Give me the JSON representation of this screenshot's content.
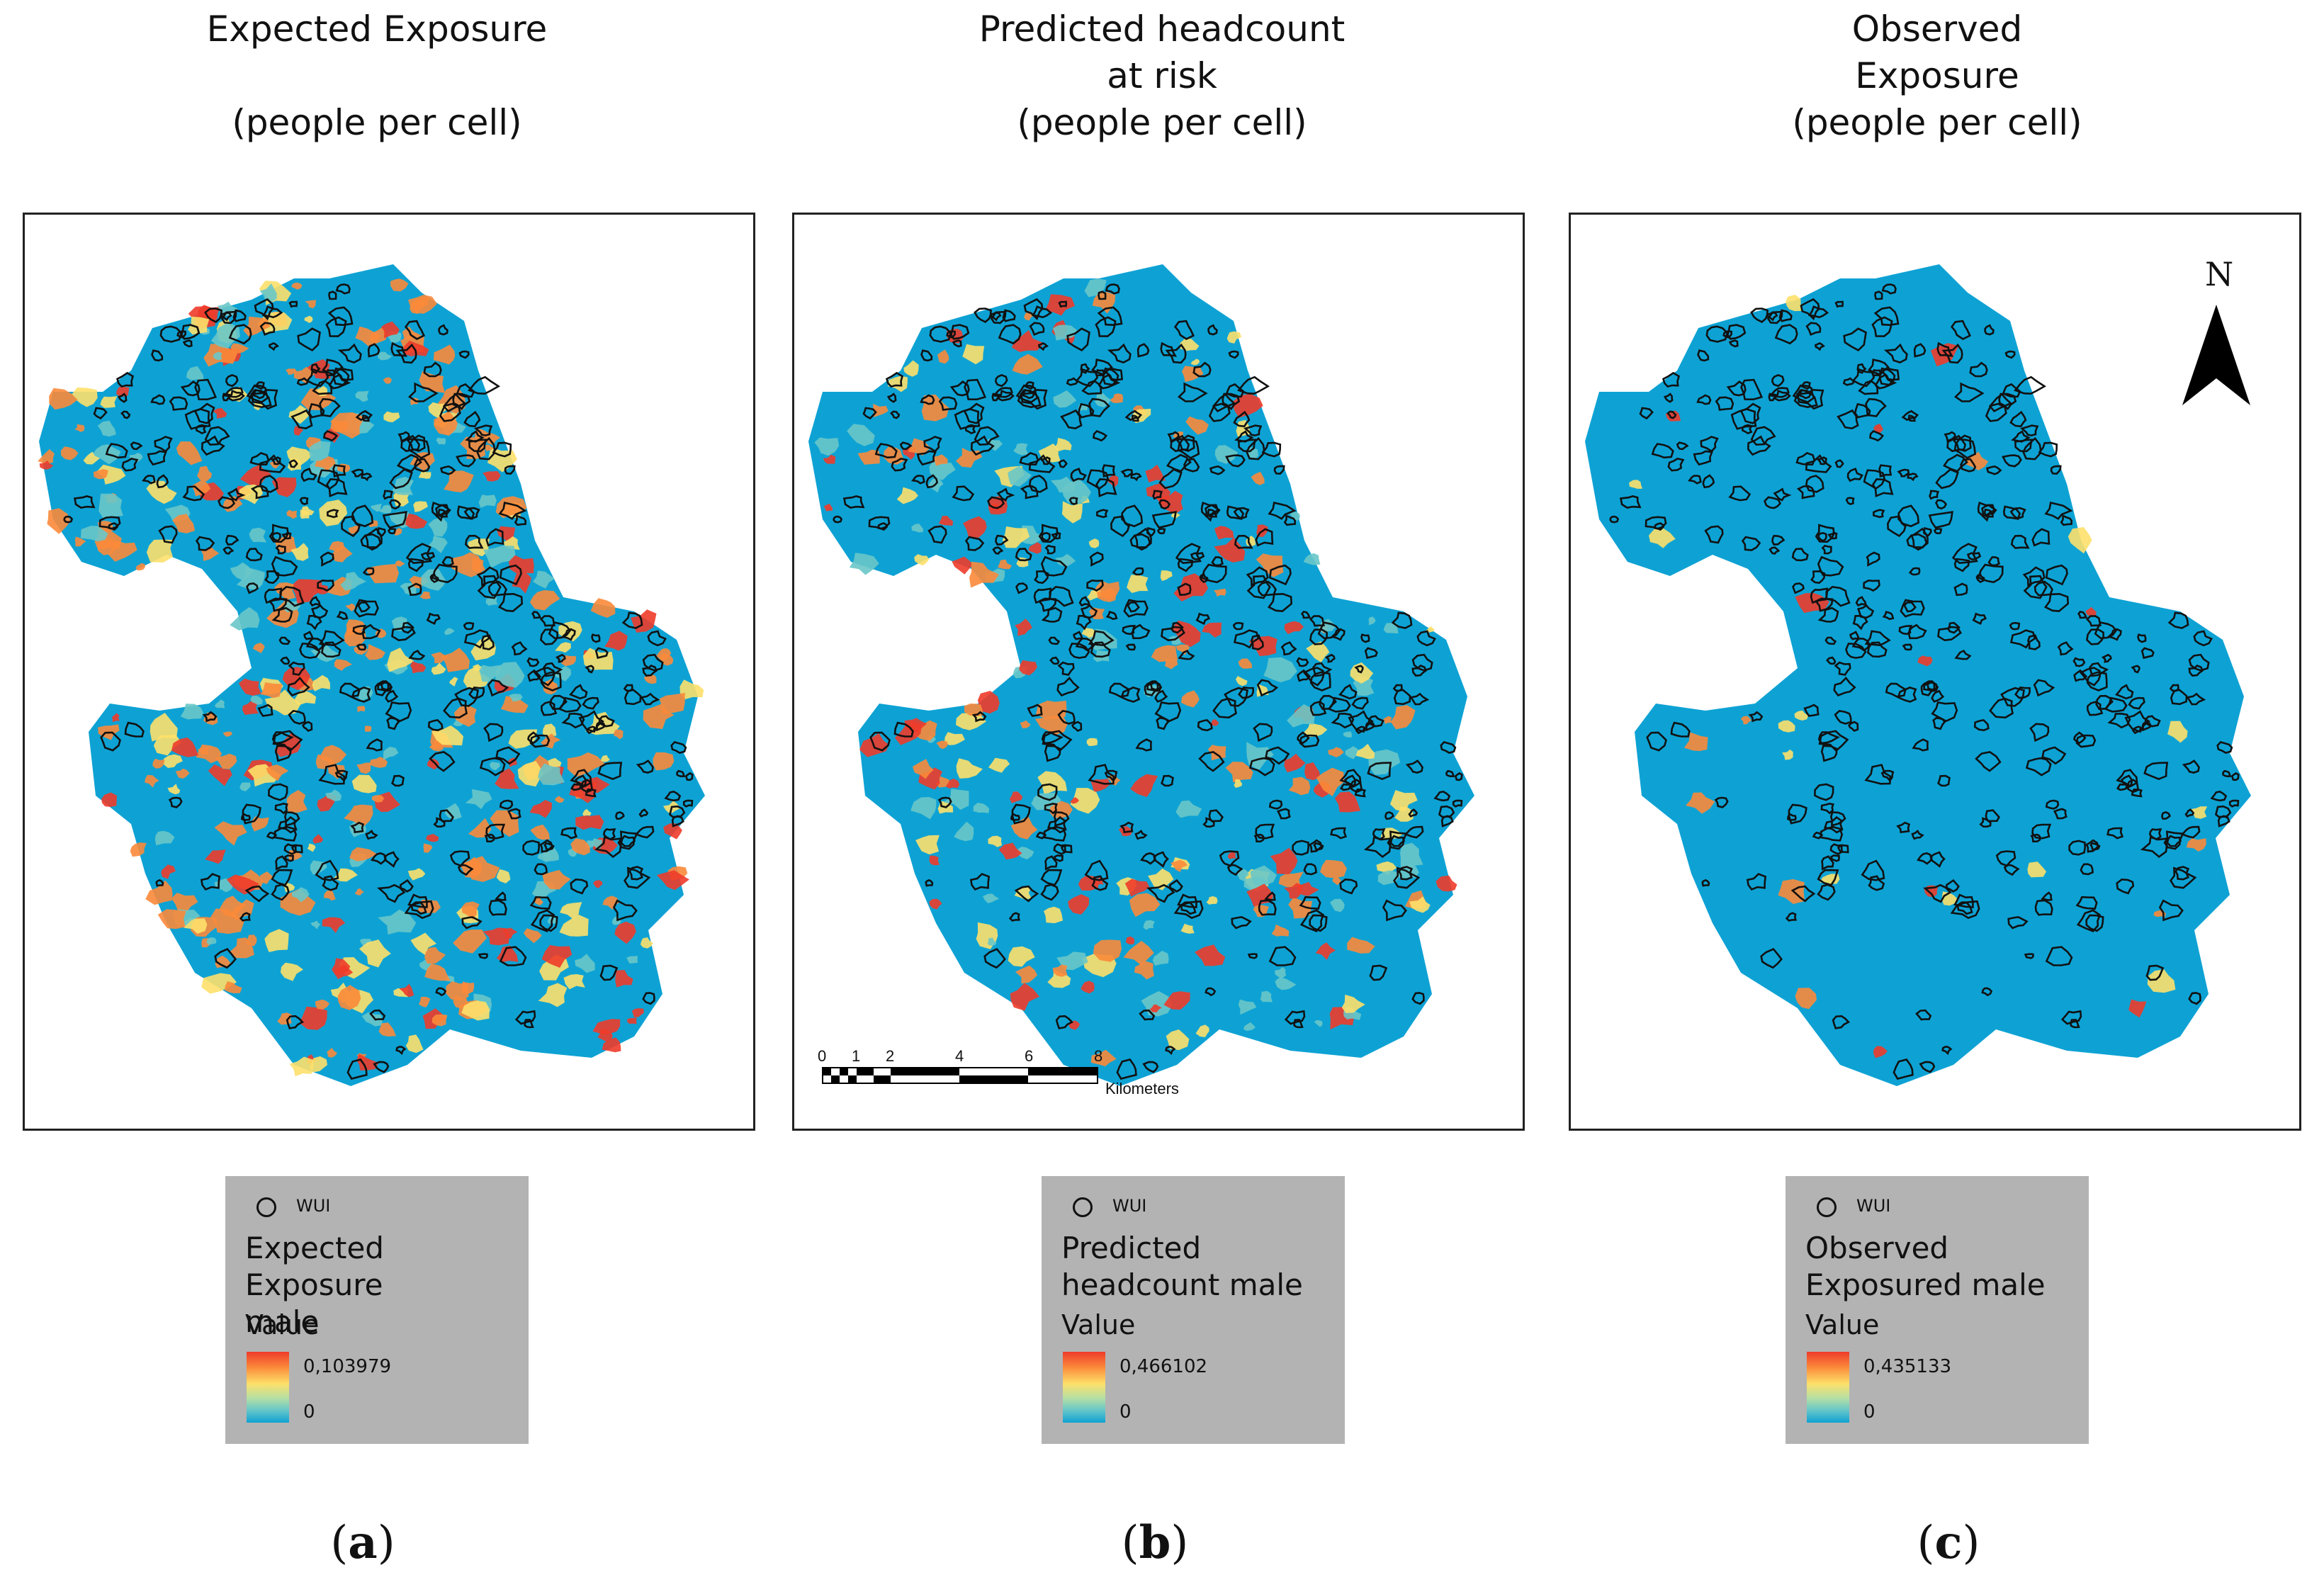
{
  "panels": [
    {
      "title_lines": [
        "Expected Exposure",
        "",
        "(people per cell)"
      ],
      "legend": {
        "wui_label": "WUI",
        "title_lines": [
          "Expected Exposure",
          "male"
        ],
        "value_label": "Value",
        "max": "0,103979",
        "min": "0"
      },
      "letter_open": "(",
      "letter": "a",
      "letter_close": ")"
    },
    {
      "title_lines": [
        "Predicted headcount",
        "at risk",
        "(people per cell)"
      ],
      "legend": {
        "wui_label": "WUI",
        "title_lines": [
          "Predicted",
          "headcount male"
        ],
        "value_label": "Value",
        "max": "0,466102",
        "min": "0"
      },
      "letter_open": "(",
      "letter": "b",
      "letter_close": ")"
    },
    {
      "title_lines": [
        "Observed",
        "Exposure",
        "(people per cell)"
      ],
      "legend": {
        "wui_label": "WUI",
        "title_lines": [
          "Observed",
          "Exposured male"
        ],
        "value_label": "Value",
        "max": "0,435133",
        "min": "0"
      },
      "letter_open": "(",
      "letter": "c",
      "letter_close": ")"
    }
  ],
  "scalebar": {
    "ticks": [
      "0",
      "1",
      "2",
      "4",
      "6",
      "8"
    ],
    "unit": "Kilometers"
  },
  "north_arrow": {
    "label": "N",
    "icon": "north-arrow-icon"
  },
  "colors": {
    "base": "#0ea2d4",
    "low": "#69c7c8",
    "mid": "#fde06a",
    "high": "#fb8a3a",
    "max": "#ee3b2a",
    "wui_outline": "#111111",
    "legend_bg": "#b3b3b3"
  }
}
